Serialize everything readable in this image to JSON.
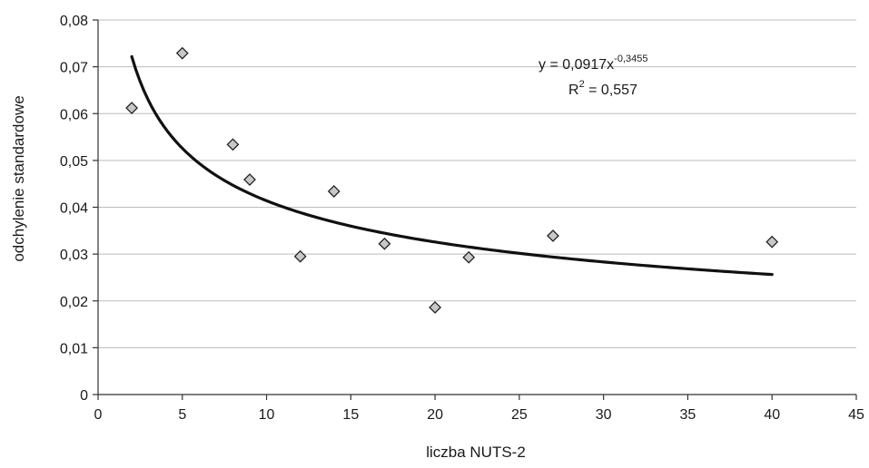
{
  "chart_data": {
    "type": "scatter",
    "xlabel": "liczba NUTS-2",
    "ylabel": "odchylenie standardowe",
    "xlim": [
      0,
      45
    ],
    "ylim": [
      0,
      0.08
    ],
    "x_ticks": [
      0,
      5,
      10,
      15,
      20,
      25,
      30,
      35,
      40,
      45
    ],
    "y_ticks": [
      0,
      0.01,
      0.02,
      0.03,
      0.04,
      0.05,
      0.06,
      0.07,
      0.08
    ],
    "x_tick_labels": [
      "0",
      "5",
      "10",
      "15",
      "20",
      "25",
      "30",
      "35",
      "40",
      "45"
    ],
    "y_tick_labels": [
      "0",
      "0,01",
      "0,02",
      "0,03",
      "0,04",
      "0,05",
      "0,06",
      "0,07",
      "0,08"
    ],
    "grid": "horizontal",
    "marker": "diamond",
    "marker_color": "#c8c8c8",
    "series": [
      {
        "x": [
          2,
          5,
          8,
          9,
          12,
          14,
          17,
          20,
          22,
          27,
          40
        ],
        "y": [
          0.0612,
          0.0729,
          0.0534,
          0.0459,
          0.0295,
          0.0434,
          0.0322,
          0.0186,
          0.0293,
          0.0339,
          0.0326
        ]
      }
    ],
    "trendline": {
      "type": "power",
      "a": 0.0917,
      "b": -0.3455,
      "x_range": [
        2,
        40
      ],
      "equation_prefix": "y = 0,0917x",
      "equation_exponent": "-0,3455",
      "r2_prefix": "R",
      "r2_exponent": "2",
      "r2_suffix": " = 0,557"
    }
  }
}
